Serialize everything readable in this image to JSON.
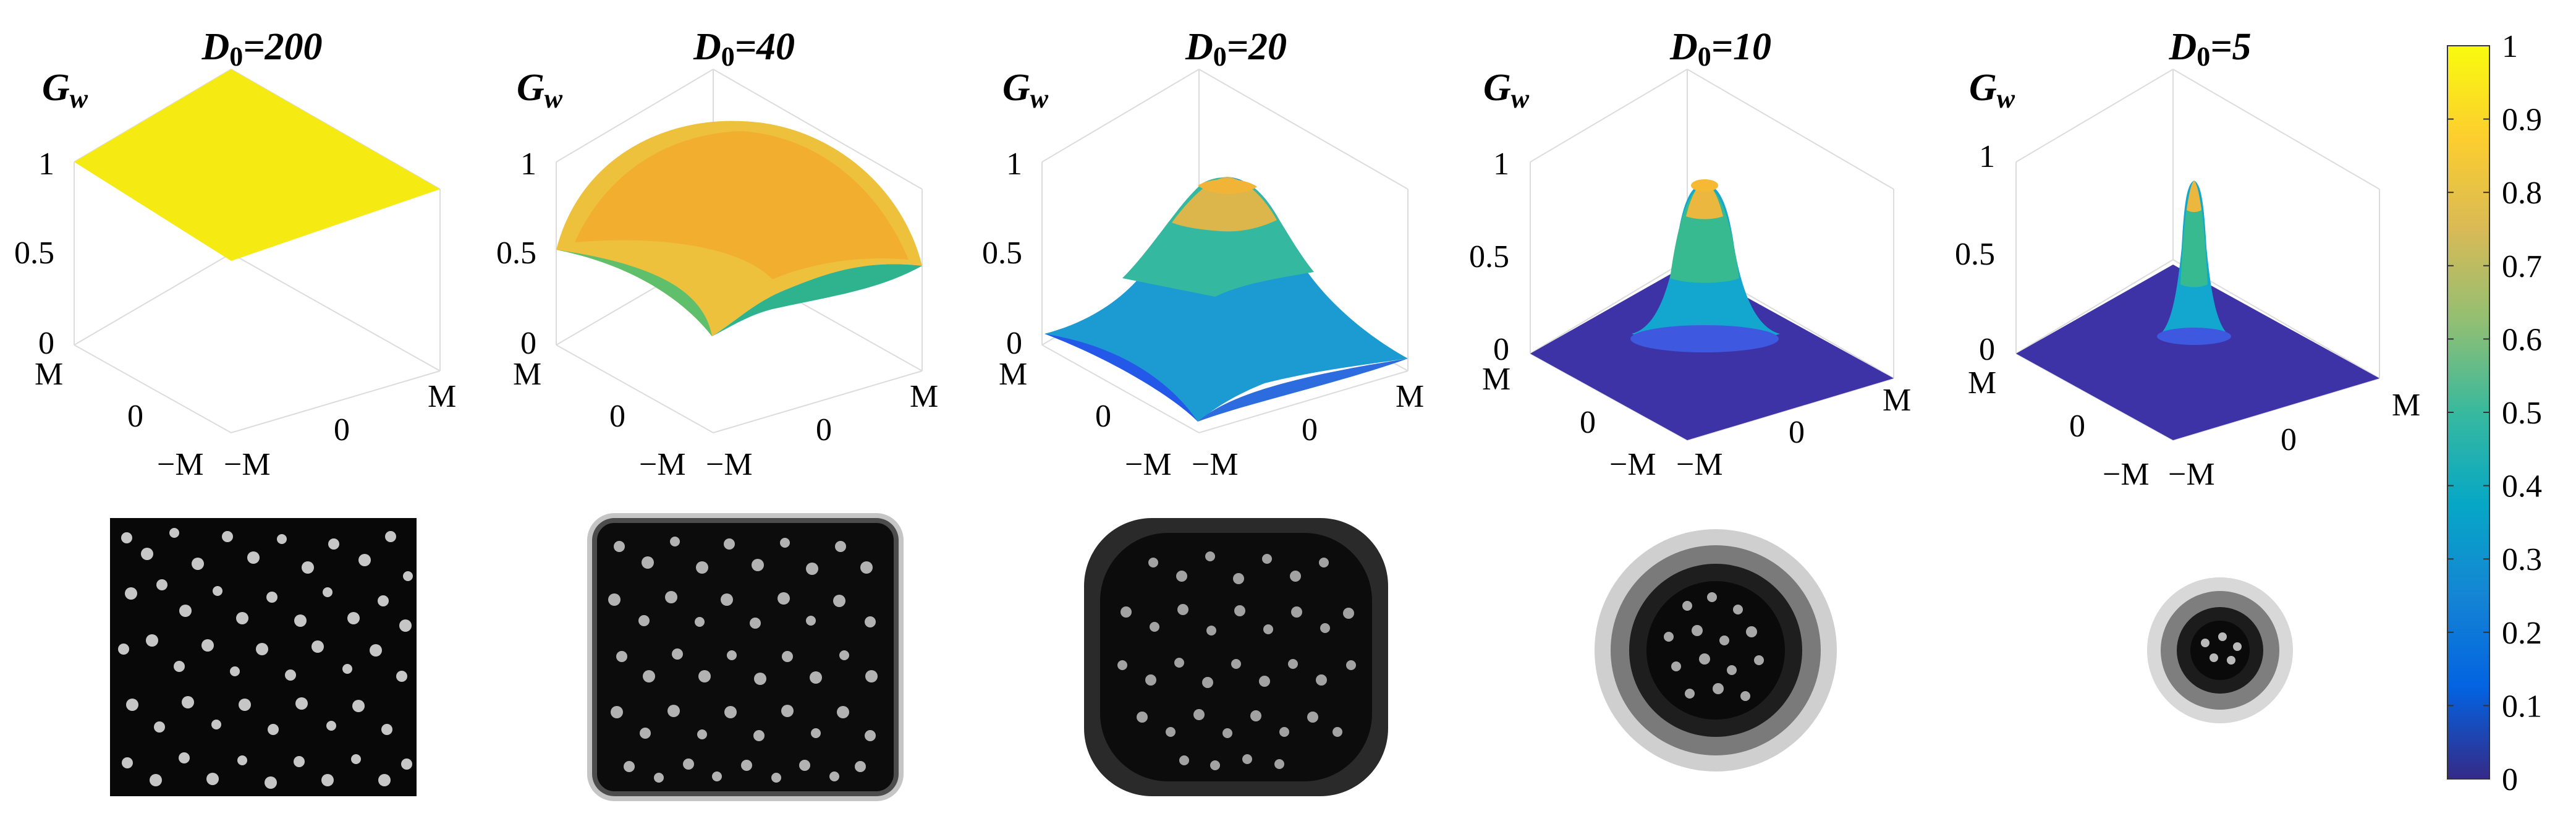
{
  "chart_data": {
    "type": "surface",
    "z_axis_label": "G",
    "z_axis_label_subscript": "w",
    "z_ticks": [
      "0",
      "0.5",
      "1"
    ],
    "x_ticks": [
      "M",
      "0",
      "−M"
    ],
    "y_ticks": [
      "M",
      "0",
      "−M"
    ],
    "zlim": [
      0,
      1
    ],
    "panels": [
      {
        "title_var": "D",
        "title_sub": "0",
        "title_value": "=200",
        "D0": 200
      },
      {
        "title_var": "D",
        "title_sub": "0",
        "title_value": "=40",
        "D0": 40
      },
      {
        "title_var": "D",
        "title_sub": "0",
        "title_value": "=20",
        "D0": 20
      },
      {
        "title_var": "D",
        "title_sub": "0",
        "title_value": "=10",
        "D0": 10
      },
      {
        "title_var": "D",
        "title_sub": "0",
        "title_value": "=5",
        "D0": 5
      }
    ],
    "colorbar": {
      "min": 0,
      "max": 1,
      "ticks": [
        "0",
        "0.1",
        "0.2",
        "0.3",
        "0.4",
        "0.5",
        "0.6",
        "0.7",
        "0.8",
        "0.9",
        "1"
      ],
      "colormap": "parula",
      "colormap_colors": [
        "#352a87",
        "#0363e1",
        "#1485d4",
        "#06a7c6",
        "#38b99e",
        "#92bf73",
        "#d9ba56",
        "#fcce2e",
        "#f9fb0e"
      ]
    }
  }
}
